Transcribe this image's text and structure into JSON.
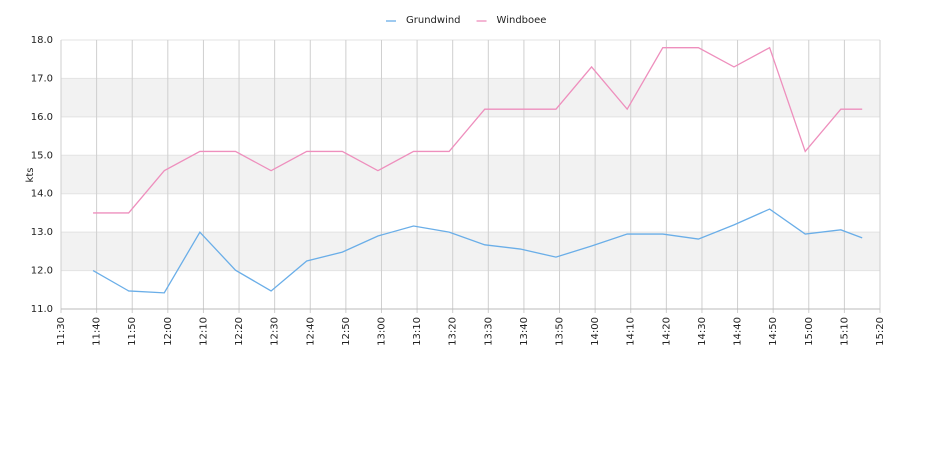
{
  "chart_data": {
    "type": "line",
    "y_label": "kts",
    "x": [
      "11:39",
      "11:49",
      "11:59",
      "12:09",
      "12:19",
      "12:29",
      "12:39",
      "12:49",
      "12:59",
      "13:09",
      "13:19",
      "13:29",
      "13:39",
      "13:49",
      "13:59",
      "14:09",
      "14:19",
      "14:29",
      "14:39",
      "14:49",
      "14:59",
      "15:09",
      "15:15"
    ],
    "series": [
      {
        "name": "Grundwind",
        "color": "#6aaee8",
        "values": [
          12.0,
          11.47,
          11.42,
          13.0,
          12.01,
          11.47,
          12.25,
          12.48,
          12.9,
          13.16,
          13.0,
          12.67,
          12.56,
          12.35,
          12.64,
          12.95,
          12.95,
          12.82,
          13.19,
          13.6,
          12.95,
          13.06,
          12.85
        ]
      },
      {
        "name": "Windboee",
        "color": "#ee8fbd",
        "values": [
          13.5,
          13.5,
          14.6,
          15.1,
          15.1,
          14.6,
          15.1,
          15.1,
          14.6,
          15.1,
          15.1,
          16.2,
          16.2,
          16.2,
          17.3,
          16.2,
          17.8,
          17.8,
          17.3,
          17.8,
          15.1,
          16.2,
          16.2
        ]
      }
    ],
    "xlim": [
      "11:30",
      "15:20"
    ],
    "xticks": [
      "11:30",
      "11:40",
      "11:50",
      "12:00",
      "12:10",
      "12:20",
      "12:30",
      "12:40",
      "12:50",
      "13:00",
      "13:10",
      "13:20",
      "13:30",
      "13:40",
      "13:50",
      "14:00",
      "14:10",
      "14:20",
      "14:30",
      "14:40",
      "14:50",
      "15:00",
      "15:10",
      "15:20"
    ],
    "ylim": [
      11,
      18
    ],
    "yticks": [
      {
        "value": 11,
        "label": "11.0"
      },
      {
        "value": 12,
        "label": "12.0"
      },
      {
        "value": 13,
        "label": "13.0"
      },
      {
        "value": 14,
        "label": "14.0"
      },
      {
        "value": 15,
        "label": "15.0"
      },
      {
        "value": 16,
        "label": "16.0"
      },
      {
        "value": 17,
        "label": "17.0"
      },
      {
        "value": 18,
        "label": "18.0"
      }
    ],
    "grid": true,
    "legend": "top"
  }
}
